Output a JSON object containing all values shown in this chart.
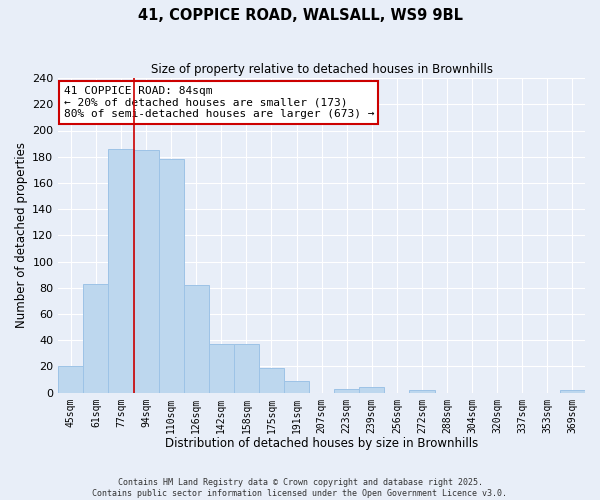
{
  "title": "41, COPPICE ROAD, WALSALL, WS9 9BL",
  "subtitle": "Size of property relative to detached houses in Brownhills",
  "xlabel": "Distribution of detached houses by size in Brownhills",
  "ylabel": "Number of detached properties",
  "bin_labels": [
    "45sqm",
    "61sqm",
    "77sqm",
    "94sqm",
    "110sqm",
    "126sqm",
    "142sqm",
    "158sqm",
    "175sqm",
    "191sqm",
    "207sqm",
    "223sqm",
    "239sqm",
    "256sqm",
    "272sqm",
    "288sqm",
    "304sqm",
    "320sqm",
    "337sqm",
    "353sqm",
    "369sqm"
  ],
  "bar_values": [
    20,
    83,
    186,
    185,
    178,
    82,
    37,
    37,
    19,
    9,
    0,
    3,
    4,
    0,
    2,
    0,
    0,
    0,
    0,
    0,
    2
  ],
  "bar_color": "#bdd7ee",
  "bar_edge_color": "#9dc3e6",
  "vline_x_idx": 2,
  "vline_color": "#cc0000",
  "annotation_text": "41 COPPICE ROAD: 84sqm\n← 20% of detached houses are smaller (173)\n80% of semi-detached houses are larger (673) →",
  "annotation_box_color": "#ffffff",
  "annotation_box_edge": "#cc0000",
  "ylim": [
    0,
    240
  ],
  "yticks": [
    0,
    20,
    40,
    60,
    80,
    100,
    120,
    140,
    160,
    180,
    200,
    220,
    240
  ],
  "bg_color": "#e8eef8",
  "grid_color": "#ffffff",
  "footer_line1": "Contains HM Land Registry data © Crown copyright and database right 2025.",
  "footer_line2": "Contains public sector information licensed under the Open Government Licence v3.0."
}
